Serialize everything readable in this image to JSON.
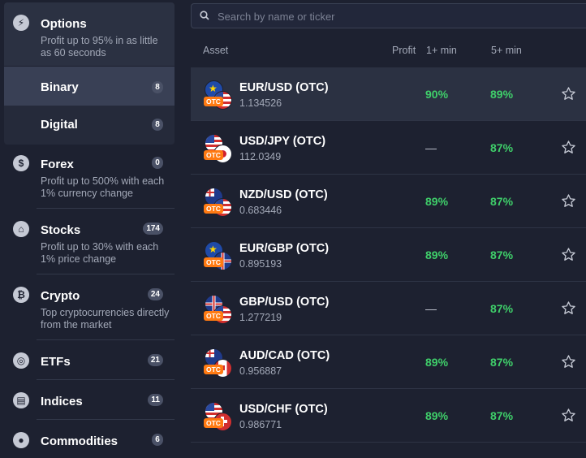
{
  "sidebar": {
    "options": {
      "title": "Options",
      "desc": "Profit up to 95% in as little as 60 seconds",
      "icon": "lightning-icon"
    },
    "binary": {
      "title": "Binary",
      "count": "8"
    },
    "digital": {
      "title": "Digital",
      "count": "8"
    },
    "forex": {
      "title": "Forex",
      "count": "0",
      "desc": "Profit up to 500% with each 1% currency change",
      "icon": "dollar-icon"
    },
    "stocks": {
      "title": "Stocks",
      "count": "174",
      "desc": "Profit up to 30% with each 1% price change",
      "icon": "bank-icon"
    },
    "crypto": {
      "title": "Crypto",
      "count": "24",
      "desc": "Top cryptocurrencies directly from the market",
      "icon": "bitcoin-icon"
    },
    "etfs": {
      "title": "ETFs",
      "count": "21",
      "icon": "globe-icon"
    },
    "indices": {
      "title": "Indices",
      "count": "11",
      "icon": "chart-box-icon"
    },
    "commodities": {
      "title": "Commodities",
      "count": "6",
      "icon": "drop-icon"
    }
  },
  "search": {
    "placeholder": "Search by name or ticker"
  },
  "columns": {
    "asset": "Asset",
    "profit": "Profit",
    "one_min": "1+ min",
    "five_min": "5+ min"
  },
  "otc_label": "OTC",
  "assets": [
    {
      "name": "EUR/USD (OTC)",
      "price": "1.134526",
      "p1": "90%",
      "p5": "89%"
    },
    {
      "name": "USD/JPY (OTC)",
      "price": "112.0349",
      "p1": "—",
      "p5": "87%"
    },
    {
      "name": "NZD/USD (OTC)",
      "price": "0.683446",
      "p1": "89%",
      "p5": "87%"
    },
    {
      "name": "EUR/GBP (OTC)",
      "price": "0.895193",
      "p1": "89%",
      "p5": "87%"
    },
    {
      "name": "GBP/USD (OTC)",
      "price": "1.277219",
      "p1": "—",
      "p5": "87%"
    },
    {
      "name": "AUD/CAD (OTC)",
      "price": "0.956887",
      "p1": "89%",
      "p5": "87%"
    },
    {
      "name": "USD/CHF (OTC)",
      "price": "0.986771",
      "p1": "89%",
      "p5": "87%"
    }
  ],
  "colors": {
    "profit_green": "#3fcf6a",
    "otc_orange": "#ff7a12",
    "background": "#1d2130"
  }
}
